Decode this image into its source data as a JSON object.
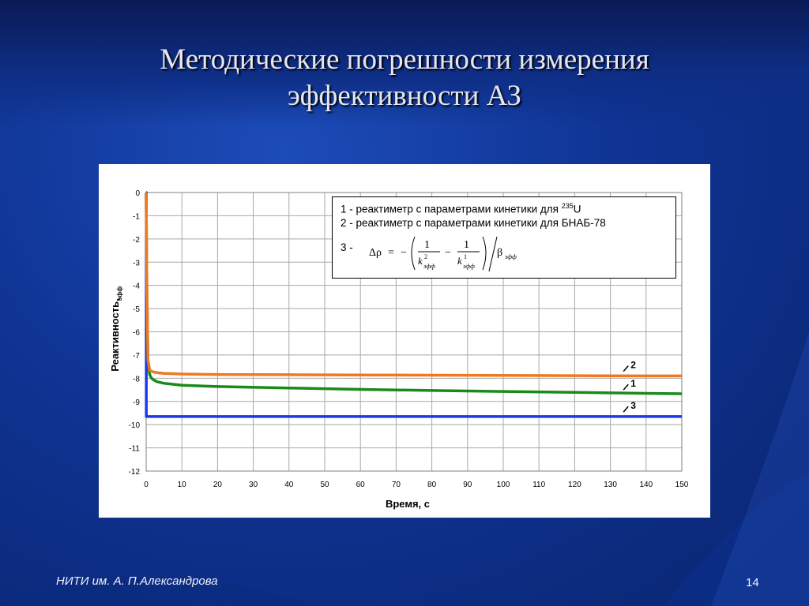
{
  "slide": {
    "title_line1": "Методические погрешности измерения",
    "title_line2": "эффективности АЗ",
    "footer": "НИТИ им. А. П.Александрова",
    "page_number": "14"
  },
  "legend": {
    "item1_text": "1 - реактиметр с параметрами кинетики для ",
    "item1_sup": "235",
    "item1_tail": "U",
    "item2_text": "2 - реактиметр с параметрами кинетики для БНАБ-78",
    "item3_label": "3 -",
    "formula": {
      "delta_rho": "Δρ",
      "equals": "=",
      "minus": "−",
      "one": "1",
      "k": "k",
      "sup2": "2",
      "sup1": "1",
      "eff": "эфф",
      "beta": "β"
    }
  },
  "chart_data": {
    "type": "line",
    "xlabel": "Время, с",
    "ylabel": "Реактивность,",
    "ylabel_sub": "эфф",
    "xlim": [
      0,
      150
    ],
    "ylim": [
      -12,
      0
    ],
    "xticks": [
      0,
      10,
      20,
      30,
      40,
      50,
      60,
      70,
      80,
      90,
      100,
      110,
      120,
      130,
      140,
      150
    ],
    "yticks": [
      0,
      -1,
      -2,
      -3,
      -4,
      -5,
      -6,
      -7,
      -8,
      -9,
      -10,
      -11,
      -12
    ],
    "grid": true,
    "series": [
      {
        "name": "1",
        "color": "#1a8a1a",
        "x": [
          0,
          0.2,
          0.5,
          1,
          1.5,
          2,
          3,
          5,
          10,
          20,
          40,
          60,
          80,
          100,
          120,
          140,
          150
        ],
        "y": [
          0,
          -4.0,
          -7.3,
          -7.85,
          -8.0,
          -8.06,
          -8.15,
          -8.22,
          -8.3,
          -8.36,
          -8.42,
          -8.48,
          -8.53,
          -8.57,
          -8.61,
          -8.65,
          -8.67
        ]
      },
      {
        "name": "2",
        "color": "#f07820",
        "x": [
          0,
          0.2,
          0.5,
          1,
          1.5,
          2,
          3,
          5,
          10,
          20,
          40,
          60,
          80,
          100,
          120,
          140,
          150
        ],
        "y": [
          0,
          -4.0,
          -7.2,
          -7.65,
          -7.7,
          -7.73,
          -7.76,
          -7.79,
          -7.82,
          -7.84,
          -7.85,
          -7.86,
          -7.87,
          -7.88,
          -7.89,
          -7.9,
          -7.9
        ]
      },
      {
        "name": "3",
        "color": "#1a3ae8",
        "x": [
          0,
          0.05,
          0.05,
          150
        ],
        "y": [
          0,
          0,
          -9.65,
          -9.65
        ]
      }
    ]
  }
}
